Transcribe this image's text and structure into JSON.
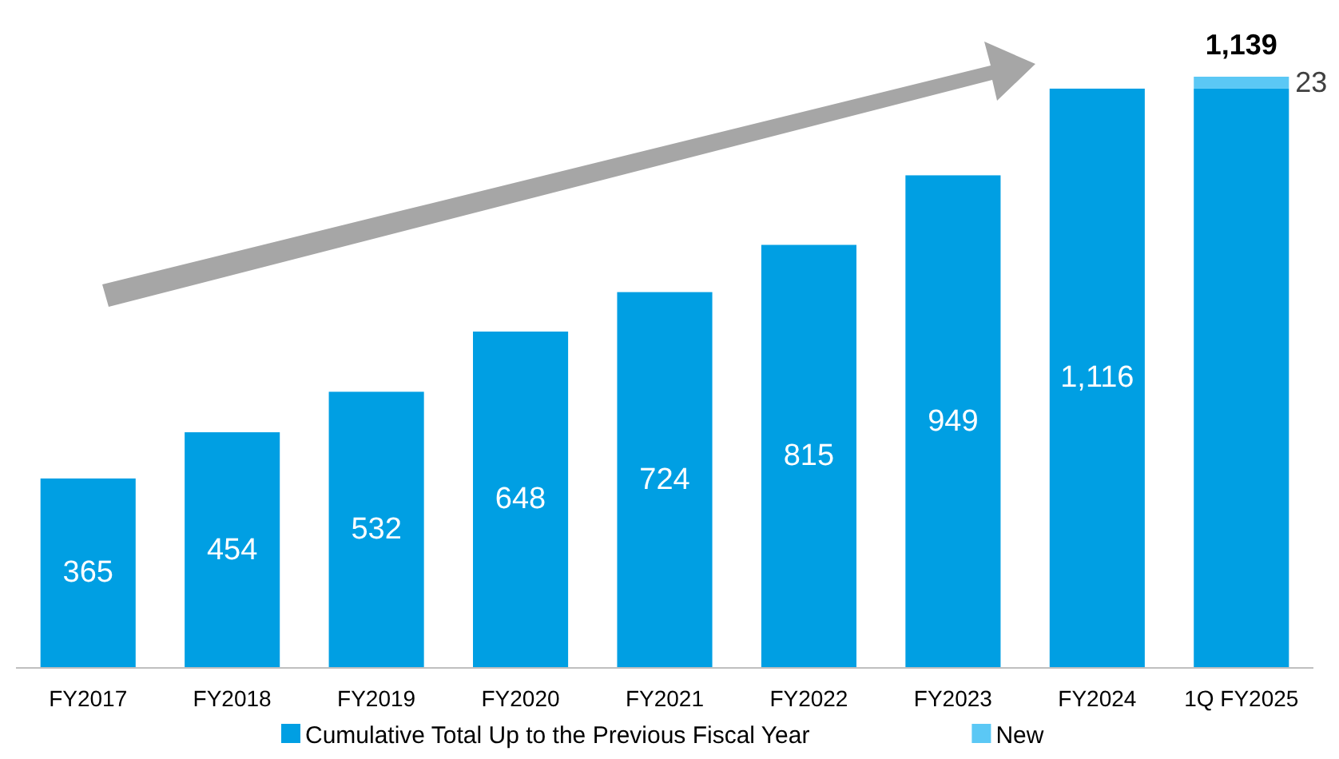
{
  "chart_data": {
    "type": "bar",
    "stacked": true,
    "categories": [
      "FY2017",
      "FY2018",
      "FY2019",
      "FY2020",
      "FY2021",
      "FY2022",
      "FY2023",
      "FY2024",
      "1Q FY2025"
    ],
    "series": [
      {
        "name": "Cumulative Total Up to the Previous Fiscal Year",
        "color": "#009fe3",
        "values": [
          365,
          454,
          532,
          648,
          724,
          815,
          949,
          1116,
          1116
        ],
        "value_labels": [
          "365",
          "454",
          "532",
          "648",
          "724",
          "815",
          "949",
          "1,116",
          null
        ]
      },
      {
        "name": "New",
        "color": "#5bc8f5",
        "values": [
          null,
          null,
          null,
          null,
          null,
          null,
          null,
          null,
          23
        ],
        "value_labels": [
          null,
          null,
          null,
          null,
          null,
          null,
          null,
          null,
          "23"
        ]
      }
    ],
    "totals": [
      null,
      null,
      null,
      null,
      null,
      null,
      null,
      null,
      "1,139"
    ],
    "legend": "bottom"
  }
}
